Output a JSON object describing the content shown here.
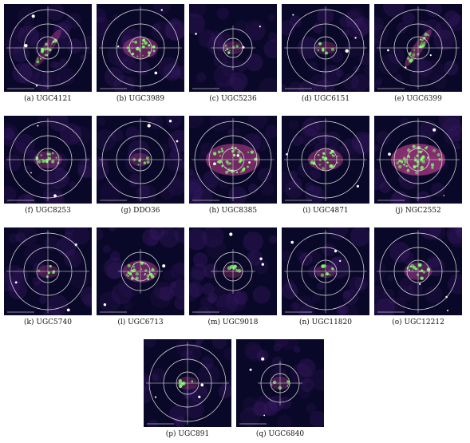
{
  "figure": {
    "panels": [
      {
        "caption": "(a) UGC4121",
        "type": "edge_on",
        "rings": 3,
        "emission": "light"
      },
      {
        "caption": "(b) UGC3989",
        "type": "compact",
        "rings": 3,
        "emission": "medium"
      },
      {
        "caption": "(c) UGC5236",
        "type": "sparse",
        "rings": 2,
        "emission": "faint"
      },
      {
        "caption": "(d) UGC6151",
        "type": "sparse",
        "rings": 3,
        "emission": "faint"
      },
      {
        "caption": "(e) UGC6399",
        "type": "edge_on",
        "rings": 3,
        "emission": "medium"
      },
      {
        "caption": "(f) UGC8253",
        "type": "compact",
        "rings": 3,
        "emission": "light"
      },
      {
        "caption": "(g) DDO36",
        "type": "sparse",
        "rings": 3,
        "emission": "faint"
      },
      {
        "caption": "(h) UGC8385",
        "type": "bright",
        "rings": 3,
        "emission": "strong"
      },
      {
        "caption": "(i) UGC4871",
        "type": "compact",
        "rings": 3,
        "emission": "medium"
      },
      {
        "caption": "(j) NGC2552",
        "type": "bright",
        "rings": 3,
        "emission": "very_strong"
      },
      {
        "caption": "(k) UGC5740",
        "type": "sparse",
        "rings": 3,
        "emission": "faint"
      },
      {
        "caption": "(l) UGC6713",
        "type": "compact",
        "rings": 2,
        "emission": "medium"
      },
      {
        "caption": "(m) UGC9018",
        "type": "sparse",
        "rings": 2,
        "emission": "faint"
      },
      {
        "caption": "(n) UGC11820",
        "type": "sparse",
        "rings": 3,
        "emission": "faint"
      },
      {
        "caption": "(o) UGC12212",
        "type": "compact",
        "rings": 3,
        "emission": "light"
      },
      {
        "caption": "(p) UGC891",
        "type": "sparse",
        "rings": 3,
        "emission": "faint"
      },
      {
        "caption": "(q) UGC6840",
        "type": "sparse",
        "rings": 2,
        "emission": "faint"
      }
    ],
    "colors": {
      "background": "#0a0828",
      "noise": "#3a1a66",
      "rings": "#e6e6e6",
      "emission_core": "#7dff6a",
      "emission_halo": "#c2428f"
    }
  }
}
